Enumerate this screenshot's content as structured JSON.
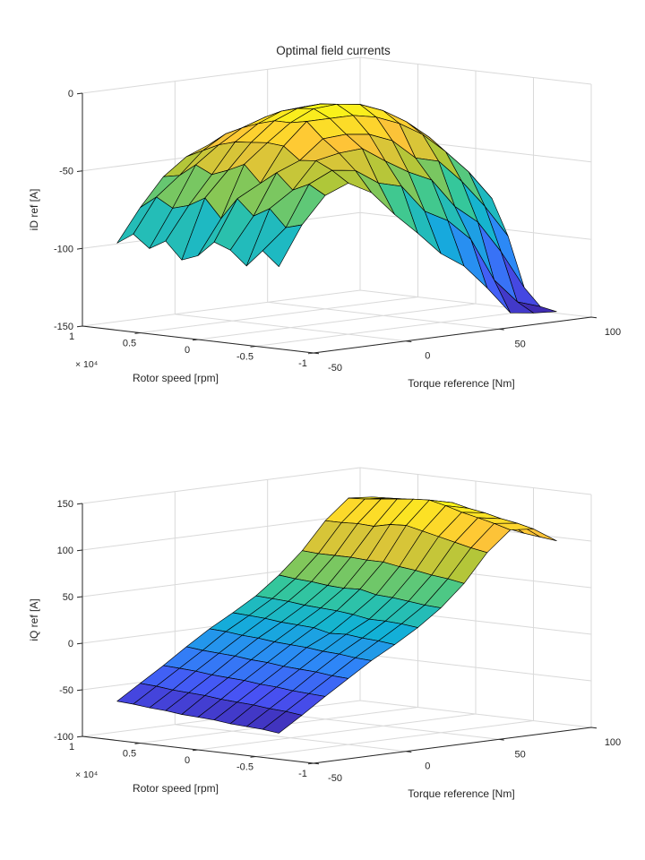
{
  "figure": {
    "background": "#ffffff",
    "text_color": "#262626",
    "grid_color": "#d9d9d9",
    "axis_color": "#262626",
    "surface_edge_color": "#000000",
    "colormap": "parula"
  },
  "chart_data": [
    {
      "type": "surface",
      "title": "Optimal field currents",
      "xlabel": "Torque reference [Nm]",
      "ylabel": "Rotor speed [rpm]",
      "zlabel": "iD ref [A]",
      "xlim": [
        -50,
        100
      ],
      "ylim": [
        -10000,
        10000
      ],
      "zlim": [
        -150,
        0
      ],
      "x_ticks": [
        -50,
        0,
        50,
        100
      ],
      "x_tick_labels": [
        "-50",
        "0",
        "50",
        "100"
      ],
      "y_ticks": [
        -10000,
        -5000,
        0,
        5000,
        10000
      ],
      "y_tick_labels": [
        "-1",
        "-0.5",
        "0",
        "0.5",
        "1"
      ],
      "y_axis_exponent": "× 10⁴",
      "z_ticks": [
        -150,
        -100,
        -50,
        0
      ],
      "z_tick_labels": [
        "-150",
        "-100",
        "-50",
        "0"
      ],
      "grid": true,
      "view": {
        "azimuth": -37.5,
        "elevation": 30
      },
      "x": [
        -50,
        -37.5,
        -25,
        -12.5,
        0,
        12.5,
        25,
        37.5,
        50,
        62.5,
        75,
        87.5,
        100
      ],
      "y": [
        -7000,
        -5600,
        -4200,
        -2800,
        -1400,
        0,
        1400,
        2800,
        4200,
        5600,
        7000
      ],
      "z": [
        [
          -97,
          -72,
          -55,
          -49,
          -57,
          -73,
          -87,
          -102,
          -112,
          -128,
          -146,
          -148,
          -149
        ],
        [
          -88,
          -75,
          -49,
          -42,
          -44,
          -54,
          -58,
          -76,
          -84,
          -98,
          -126,
          -142,
          -147
        ],
        [
          -99,
          -64,
          -54,
          -37,
          -34,
          -33,
          -43,
          -52,
          -59,
          -78,
          -90,
          -111,
          -136
        ],
        [
          -90,
          -70,
          -44,
          -38,
          -26,
          -25,
          -27,
          -33,
          -46,
          -50,
          -65,
          -83,
          -104
        ],
        [
          -86,
          -60,
          -52,
          -30,
          -16,
          -16,
          -16,
          -19,
          -25,
          -34,
          -47,
          -62,
          -81
        ],
        [
          -96,
          -74,
          -41,
          -29,
          -18,
          -11,
          -10,
          -12,
          -18,
          -27,
          -39,
          -55,
          -74
        ],
        [
          -100,
          -62,
          -46,
          -30,
          -18,
          -12,
          -11,
          -14,
          -19,
          -28,
          -41,
          -56,
          -75
        ],
        [
          -89,
          -68,
          -50,
          -31,
          -21,
          -15,
          -14,
          -16,
          -22,
          -31,
          -43,
          -59,
          -78
        ],
        [
          -95,
          -71,
          -45,
          -34,
          -25,
          -20,
          -19,
          -21,
          -27,
          -36,
          -48,
          -64,
          -82
        ],
        [
          -87,
          -65,
          -53,
          -39,
          -30,
          -27,
          -25,
          -28,
          -34,
          -43,
          -55,
          -70,
          -89
        ],
        [
          -94,
          -73,
          -55,
          -44,
          -38,
          -35,
          -34,
          -37,
          -42,
          -51,
          -63,
          -79,
          -98
        ]
      ]
    },
    {
      "type": "surface",
      "title": "",
      "xlabel": "Torque reference [Nm]",
      "ylabel": "Rotor speed [rpm]",
      "zlabel": "iQ ref [A]",
      "xlim": [
        -50,
        100
      ],
      "ylim": [
        -10000,
        10000
      ],
      "zlim": [
        -100,
        150
      ],
      "x_ticks": [
        -50,
        0,
        50,
        100
      ],
      "x_tick_labels": [
        "-50",
        "0",
        "50",
        "100"
      ],
      "y_ticks": [
        -10000,
        -5000,
        0,
        5000,
        10000
      ],
      "y_tick_labels": [
        "-1",
        "-0.5",
        "0",
        "0.5",
        "1"
      ],
      "y_axis_exponent": "× 10⁴",
      "z_ticks": [
        -100,
        -50,
        0,
        50,
        100,
        150
      ],
      "z_tick_labels": [
        "-100",
        "-50",
        "0",
        "50",
        "100",
        "150"
      ],
      "grid": true,
      "view": {
        "azimuth": -37.5,
        "elevation": 30
      },
      "x": [
        -50,
        -37.5,
        -25,
        -12.5,
        0,
        12.5,
        25,
        37.5,
        50,
        62.5,
        75,
        87.5,
        100
      ],
      "y": [
        -7000,
        -5600,
        -4200,
        -2800,
        -1400,
        0,
        1400,
        2800,
        4200,
        5600,
        7000
      ],
      "z": [
        [
          -72,
          -56,
          -39,
          -23,
          -7,
          7,
          22,
          40,
          63,
          93,
          114,
          112,
          96
        ],
        [
          -70,
          -54,
          -38,
          -22,
          -6,
          9,
          24,
          41,
          66,
          96,
          119,
          116,
          98
        ],
        [
          -69,
          -53,
          -37,
          -20,
          -4,
          10,
          25,
          43,
          68,
          100,
          123,
          119,
          100
        ],
        [
          -68,
          -51,
          -35,
          -19,
          -3,
          12,
          25,
          45,
          71,
          104,
          127,
          123,
          103
        ],
        [
          -66,
          -50,
          -34,
          -18,
          -1,
          11,
          28,
          46,
          73,
          108,
          132,
          126,
          105
        ],
        [
          -65,
          -49,
          -32,
          -16,
          0,
          15,
          30,
          50,
          76,
          112,
          136,
          130,
          108
        ],
        [
          -64,
          -47,
          -31,
          -15,
          1,
          16,
          31,
          49,
          76,
          111,
          135,
          129,
          108
        ],
        [
          -62,
          -46,
          -30,
          -13,
          3,
          17,
          32,
          50,
          77,
          107,
          133,
          128,
          108
        ],
        [
          -61,
          -45,
          -28,
          -12,
          4,
          19,
          34,
          52,
          77,
          108,
          131,
          128,
          109
        ],
        [
          -59,
          -43,
          -27,
          -11,
          6,
          20,
          35,
          53,
          77,
          107,
          129,
          127,
          109
        ],
        [
          -58,
          -42,
          -26,
          -9,
          7,
          21,
          36,
          55,
          78,
          107,
          128,
          126,
          110
        ]
      ]
    }
  ]
}
